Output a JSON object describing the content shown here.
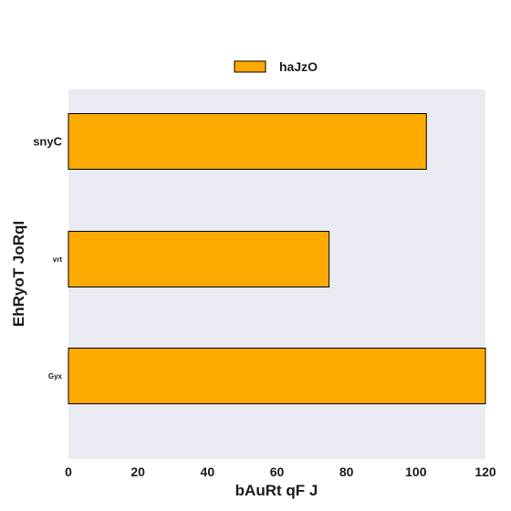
{
  "chart_data": {
    "type": "bar",
    "orientation": "horizontal",
    "categories": [
      "snyC",
      "vrt",
      "Gyx"
    ],
    "series": [
      {
        "name": "haJzO",
        "values": [
          103,
          75,
          120
        ],
        "color": "#FFAA00"
      }
    ],
    "title": "",
    "xlabel": "bAuRt  qF J",
    "ylabel": "EhRyoT JoRqI",
    "xlim": [
      0,
      120
    ],
    "xticks": [
      0,
      20,
      40,
      60,
      80,
      100,
      120
    ],
    "grid": false,
    "legend_position": "top-center",
    "colors": {
      "plot_background": "#EAEAF2",
      "bar_edge": "#000000"
    }
  }
}
